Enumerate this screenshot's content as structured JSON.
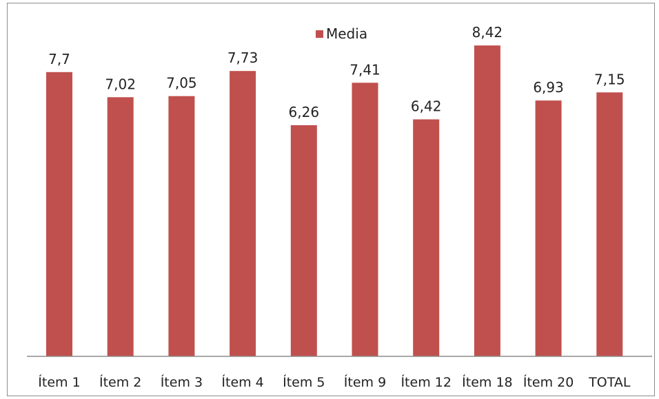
{
  "chart_data": {
    "type": "bar",
    "categories": [
      "Ítem 1",
      "Ítem 2",
      "Ítem 3",
      "Ítem 4",
      "Ítem 5",
      "Ítem 9",
      "Ítem 12",
      "Ítem 18",
      "Ítem 20",
      "TOTAL"
    ],
    "series": [
      {
        "name": "Media",
        "values": [
          7.7,
          7.02,
          7.05,
          7.73,
          6.26,
          7.41,
          6.42,
          8.42,
          6.93,
          7.15
        ],
        "data_labels": [
          "7,7",
          "7,02",
          "7,05",
          "7,73",
          "6,26",
          "7,41",
          "6,42",
          "8,42",
          "6,93",
          "7,15"
        ],
        "color": "#c0504d"
      }
    ],
    "title": "",
    "xlabel": "",
    "ylabel": "",
    "ylim": [
      0,
      9
    ],
    "legend_position": "top-center",
    "grid": false,
    "axis_color": "#8c8c8c"
  }
}
